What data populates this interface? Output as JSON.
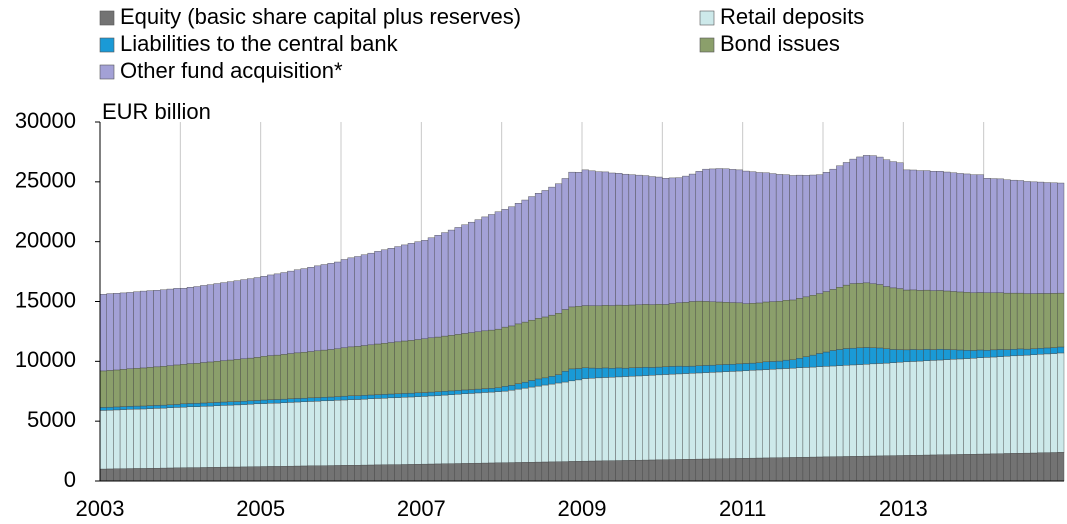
{
  "chart_data": {
    "type": "stacked_bar",
    "y_label": "EUR billion",
    "ylim": [
      0,
      30000
    ],
    "yticks": [
      0,
      5000,
      10000,
      15000,
      20000,
      25000,
      30000
    ],
    "categories": [
      "2003",
      null,
      null,
      null,
      null,
      null,
      null,
      null,
      null,
      null,
      null,
      null,
      null,
      null,
      null,
      null,
      null,
      null,
      null,
      null,
      null,
      null,
      null,
      null,
      "2005",
      null,
      null,
      null,
      null,
      null,
      null,
      null,
      null,
      null,
      null,
      null,
      null,
      null,
      null,
      null,
      null,
      null,
      null,
      null,
      null,
      null,
      null,
      null,
      "2007",
      null,
      null,
      null,
      null,
      null,
      null,
      null,
      null,
      null,
      null,
      null,
      null,
      null,
      null,
      null,
      null,
      null,
      null,
      null,
      null,
      null,
      null,
      null,
      "2009",
      null,
      null,
      null,
      null,
      null,
      null,
      null,
      null,
      null,
      null,
      null,
      null,
      null,
      null,
      null,
      null,
      null,
      null,
      null,
      null,
      null,
      null,
      null,
      "2011",
      null,
      null,
      null,
      null,
      null,
      null,
      null,
      null,
      null,
      null,
      null,
      null,
      null,
      null,
      null,
      null,
      null,
      null,
      null,
      null,
      null,
      null,
      null,
      "2013",
      null,
      null,
      null,
      null,
      null,
      null,
      null,
      null,
      null,
      null,
      null,
      null,
      null,
      null,
      null,
      null,
      null,
      null,
      null,
      null,
      null,
      null,
      null
    ],
    "grid": true,
    "series": [
      {
        "name": "Equity (basic share capital plus reserves)",
        "color": "#737373",
        "values": [
          1000,
          1010,
          1020,
          1030,
          1040,
          1050,
          1050,
          1060,
          1070,
          1080,
          1090,
          1100,
          1110,
          1120,
          1120,
          1130,
          1140,
          1150,
          1160,
          1170,
          1170,
          1180,
          1190,
          1200,
          1210,
          1220,
          1220,
          1230,
          1240,
          1250,
          1260,
          1270,
          1270,
          1280,
          1290,
          1300,
          1310,
          1320,
          1320,
          1330,
          1340,
          1350,
          1360,
          1370,
          1370,
          1380,
          1390,
          1400,
          1410,
          1420,
          1430,
          1440,
          1450,
          1460,
          1470,
          1480,
          1490,
          1500,
          1510,
          1520,
          1530,
          1540,
          1550,
          1560,
          1570,
          1580,
          1590,
          1600,
          1610,
          1620,
          1640,
          1650,
          1660,
          1670,
          1680,
          1690,
          1700,
          1710,
          1720,
          1730,
          1740,
          1750,
          1760,
          1770,
          1780,
          1790,
          1800,
          1810,
          1820,
          1830,
          1840,
          1850,
          1860,
          1870,
          1880,
          1890,
          1900,
          1910,
          1920,
          1930,
          1940,
          1950,
          1960,
          1970,
          1980,
          1990,
          2000,
          2010,
          2020,
          2030,
          2040,
          2050,
          2060,
          2070,
          2080,
          2090,
          2100,
          2110,
          2120,
          2130,
          2140,
          2150,
          2160,
          2170,
          2180,
          2190,
          2200,
          2210,
          2220,
          2230,
          2240,
          2250,
          2260,
          2270,
          2280,
          2300,
          2310,
          2320,
          2330,
          2340,
          2360,
          2370,
          2380,
          2400
        ]
      },
      {
        "name": "Retail deposits",
        "color": "#cde9ea",
        "values": [
          4900,
          4910,
          4920,
          4940,
          4950,
          4960,
          4970,
          4990,
          5000,
          5010,
          5030,
          5050,
          5060,
          5080,
          5090,
          5110,
          5120,
          5140,
          5160,
          5170,
          5190,
          5210,
          5230,
          5250,
          5260,
          5280,
          5290,
          5310,
          5330,
          5350,
          5360,
          5380,
          5400,
          5420,
          5430,
          5450,
          5460,
          5480,
          5490,
          5510,
          5530,
          5550,
          5560,
          5580,
          5600,
          5620,
          5630,
          5650,
          5660,
          5690,
          5710,
          5740,
          5760,
          5790,
          5820,
          5840,
          5870,
          5900,
          5920,
          5950,
          5980,
          6050,
          6130,
          6200,
          6280,
          6350,
          6430,
          6500,
          6580,
          6650,
          6730,
          6800,
          6900,
          6920,
          6940,
          6960,
          6970,
          6990,
          7010,
          7030,
          7040,
          7060,
          7080,
          7100,
          7120,
          7140,
          7150,
          7170,
          7180,
          7200,
          7220,
          7230,
          7250,
          7270,
          7280,
          7300,
          7320,
          7340,
          7360,
          7380,
          7400,
          7420,
          7440,
          7460,
          7480,
          7500,
          7520,
          7550,
          7560,
          7580,
          7600,
          7620,
          7640,
          7660,
          7680,
          7700,
          7720,
          7740,
          7770,
          7800,
          7820,
          7840,
          7860,
          7880,
          7900,
          7920,
          7940,
          7960,
          7980,
          8000,
          8020,
          8050,
          8070,
          8090,
          8110,
          8130,
          8150,
          8170,
          8190,
          8210,
          8230,
          8250,
          8270,
          8300
        ]
      },
      {
        "name": "Liabilities to the central bank",
        "color": "#1a9ad6",
        "values": [
          250,
          250,
          250,
          250,
          250,
          250,
          250,
          250,
          250,
          250,
          250,
          250,
          280,
          280,
          280,
          280,
          280,
          280,
          280,
          280,
          280,
          280,
          280,
          280,
          300,
          300,
          300,
          300,
          300,
          300,
          300,
          300,
          300,
          300,
          300,
          300,
          320,
          320,
          320,
          320,
          320,
          320,
          320,
          320,
          320,
          320,
          320,
          320,
          320,
          320,
          320,
          320,
          320,
          320,
          320,
          320,
          320,
          320,
          320,
          320,
          400,
          400,
          450,
          500,
          550,
          600,
          600,
          650,
          700,
          900,
          1000,
          950,
          900,
          850,
          800,
          800,
          750,
          750,
          700,
          700,
          700,
          700,
          650,
          650,
          650,
          650,
          650,
          600,
          600,
          600,
          600,
          600,
          600,
          600,
          600,
          600,
          600,
          600,
          600,
          650,
          650,
          650,
          700,
          700,
          800,
          900,
          1000,
          1100,
          1200,
          1300,
          1350,
          1400,
          1400,
          1400,
          1400,
          1350,
          1300,
          1200,
          1100,
          1050,
          1000,
          1000,
          950,
          950,
          900,
          900,
          850,
          800,
          750,
          700,
          650,
          650,
          600,
          600,
          600,
          550,
          550,
          550,
          500,
          500,
          500,
          500,
          500,
          500
        ]
      },
      {
        "name": "Bond issues",
        "color": "#8b9f6b",
        "values": [
          3050,
          3070,
          3090,
          3110,
          3140,
          3160,
          3180,
          3200,
          3220,
          3250,
          3270,
          3300,
          3300,
          3330,
          3350,
          3380,
          3410,
          3440,
          3460,
          3490,
          3520,
          3550,
          3570,
          3600,
          3650,
          3680,
          3710,
          3740,
          3780,
          3810,
          3840,
          3870,
          3910,
          3940,
          3970,
          4000,
          4050,
          4090,
          4120,
          4160,
          4190,
          4230,
          4270,
          4300,
          4340,
          4380,
          4410,
          4450,
          4500,
          4540,
          4570,
          4610,
          4650,
          4680,
          4720,
          4760,
          4790,
          4830,
          4860,
          4900,
          4950,
          4970,
          5000,
          5020,
          5040,
          5070,
          5090,
          5110,
          5130,
          5160,
          5180,
          5200,
          5200,
          5210,
          5220,
          5230,
          5240,
          5250,
          5250,
          5250,
          5250,
          5250,
          5250,
          5250,
          5200,
          5250,
          5300,
          5350,
          5400,
          5400,
          5350,
          5300,
          5250,
          5200,
          5150,
          5100,
          5000,
          5000,
          5000,
          5000,
          5000,
          5000,
          5000,
          5000,
          5000,
          5000,
          5000,
          5000,
          5050,
          5100,
          5200,
          5300,
          5400,
          5400,
          5400,
          5350,
          5300,
          5200,
          5150,
          5100,
          5000,
          4980,
          4960,
          4950,
          4930,
          4910,
          4890,
          4870,
          4850,
          4840,
          4820,
          4800,
          4800,
          4770,
          4750,
          4720,
          4690,
          4660,
          4640,
          4610,
          4580,
          4550,
          4530,
          4500
        ]
      },
      {
        "name": "Other fund acquisition*",
        "color": "#a3a1d6",
        "values": [
          6400,
          6420,
          6410,
          6390,
          6380,
          6400,
          6420,
          6410,
          6400,
          6390,
          6400,
          6400,
          6360,
          6380,
          6410,
          6440,
          6460,
          6490,
          6520,
          6550,
          6580,
          6610,
          6640,
          6670,
          6690,
          6740,
          6790,
          6840,
          6890,
          6940,
          6990,
          7040,
          7100,
          7150,
          7200,
          7250,
          7370,
          7440,
          7510,
          7590,
          7660,
          7740,
          7810,
          7880,
          7960,
          8030,
          8110,
          8180,
          8220,
          8360,
          8510,
          8650,
          8790,
          8940,
          9080,
          9230,
          9370,
          9520,
          9660,
          9810,
          9840,
          9960,
          10080,
          10200,
          10330,
          10450,
          10570,
          10700,
          10820,
          10950,
          11260,
          11200,
          11340,
          11270,
          11210,
          11150,
          11080,
          11020,
          10960,
          10890,
          10830,
          10760,
          10700,
          10630,
          10550,
          10500,
          10450,
          10550,
          10650,
          10850,
          11050,
          11100,
          11150,
          11150,
          11130,
          11110,
          11080,
          11000,
          10900,
          10800,
          10700,
          10600,
          10500,
          10400,
          10300,
          10150,
          10050,
          9940,
          9970,
          10050,
          10150,
          10250,
          10400,
          10550,
          10650,
          10700,
          10650,
          10600,
          10550,
          10520,
          10040,
          10020,
          10010,
          9990,
          9970,
          9960,
          9940,
          9920,
          9900,
          9890,
          9870,
          9850,
          9570,
          9540,
          9510,
          9470,
          9440,
          9410,
          9370,
          9340,
          9310,
          9270,
          9240,
          9200
        ]
      }
    ]
  }
}
